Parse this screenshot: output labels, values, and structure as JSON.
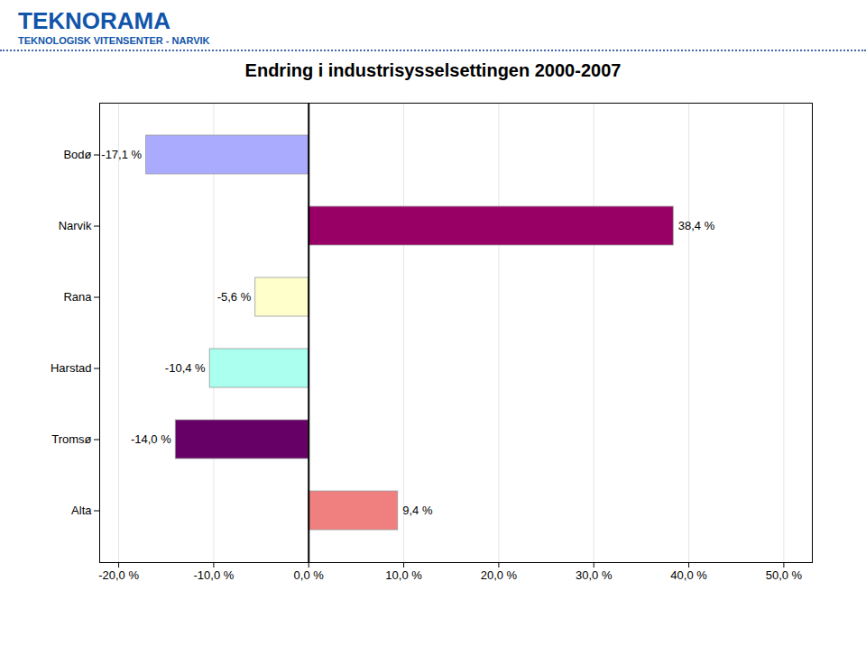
{
  "chart_data": {
    "type": "bar",
    "orientation": "horizontal",
    "title": "Endring i industrisysselsettingen 2000-2007",
    "annotations": [
      "TEKNORAMA",
      "TEKNOLOGISK VITENSENTER - NARVIK"
    ],
    "categories": [
      "Alta",
      "Tromsø",
      "Harstad",
      "Rana",
      "Narvik",
      "Bodø"
    ],
    "values": [
      9.4,
      -14.0,
      -10.4,
      -5.6,
      38.4,
      -17.1
    ],
    "value_labels": [
      "9,4 %",
      "-14,0 %",
      "-10,4 %",
      "-5,6 %",
      "38,4 %",
      "-17,1 %"
    ],
    "data_labels": true,
    "colors": [
      "#F08080",
      "#660066",
      "#AAFFEE",
      "#FFFFCC",
      "#990066",
      "#AAAAFF"
    ],
    "xlim": [
      -22,
      53
    ],
    "xticks": [
      {
        "value": -20,
        "label": "-20,0 %"
      },
      {
        "value": -10,
        "label": "-10,0 %"
      },
      {
        "value": 0,
        "label": "0,0 %"
      },
      {
        "value": 10,
        "label": "10,0 %"
      },
      {
        "value": 20,
        "label": "20,0 %"
      },
      {
        "value": 30,
        "label": "30,0 %"
      },
      {
        "value": 40,
        "label": "40,0 %"
      },
      {
        "value": 50,
        "label": "50,0 %"
      }
    ],
    "grid": true
  }
}
